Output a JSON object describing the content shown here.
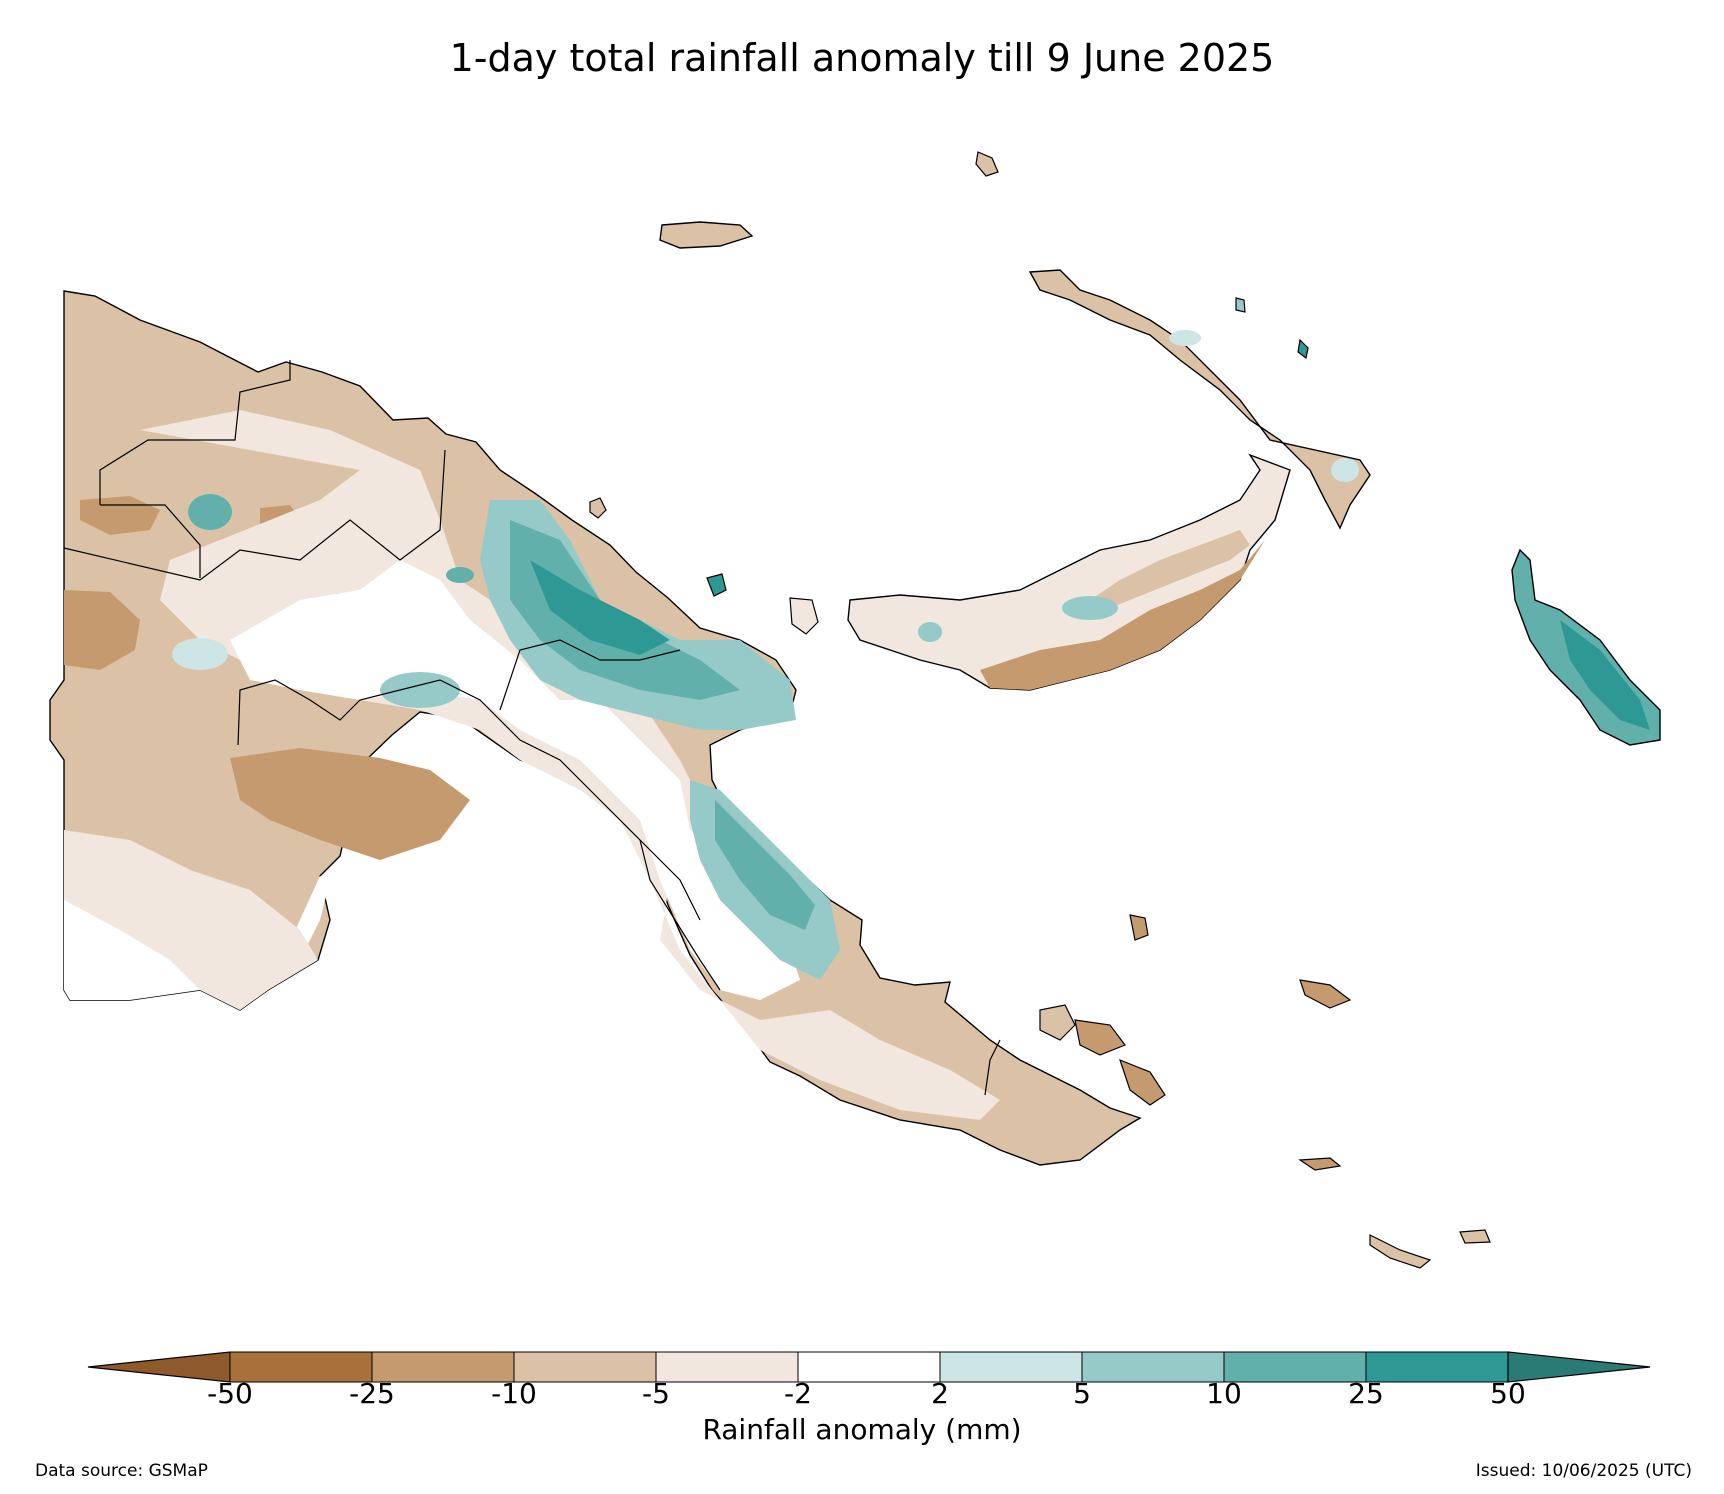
{
  "title": "1-day total rainfall anomaly till 9 June 2025",
  "colorbar": {
    "label": "Rainfall anomaly (mm)",
    "ticks": [
      "-50",
      "-25",
      "-10",
      "-5",
      "-2",
      "2",
      "5",
      "10",
      "25",
      "50"
    ],
    "colors": {
      "extend_low": "#8f5a2b",
      "lt_-25": "#a8703a",
      "-25_-10": "#c49a6e",
      "-10_-5": "#dbc2a6",
      "-5_-2": "#f1e7de",
      "-2_2": "#ffffff",
      "2_5": "#cde6e5",
      "5_10": "#96cac8",
      "10_25": "#62b0ac",
      "25_50": "#2e9994",
      "extend_high": "#2a7b76"
    }
  },
  "footer": {
    "source": "Data source: GSMaP",
    "issued": "Issued: 10/06/2025 (UTC)"
  }
}
